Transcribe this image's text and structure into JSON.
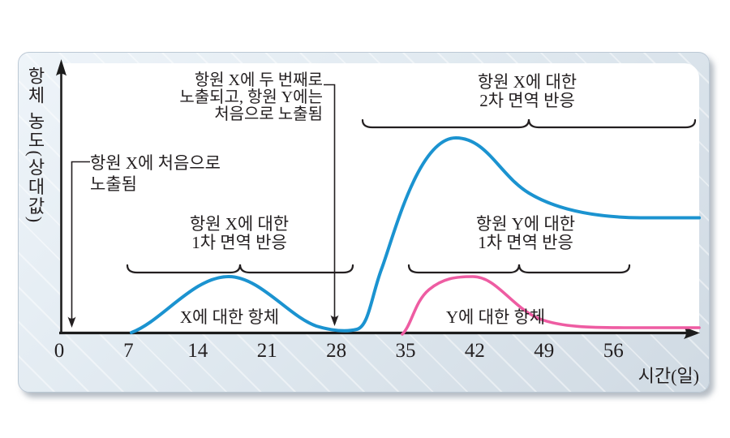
{
  "colors": {
    "curve_x_blue": "#1b93d0",
    "curve_y_pink": "#ee5ca2",
    "ink": "#231f20",
    "panel_light": "#eef4f9",
    "panel_dark": "#d0dae3"
  },
  "y_axis_label": "항체 농도(상대값)",
  "x_axis_title": "시간(일)",
  "annotations": {
    "first_exposure": {
      "line1": "항원 X에 처음으로",
      "line2": "노출됨"
    },
    "second_exposure": {
      "lines": [
        "항원 X에 두 번째로",
        "노출되고, 항원 Y에는",
        "처음으로 노출됨"
      ]
    },
    "secondary_response_x": {
      "line1": "항원 X에 대한",
      "line2": "2차 면역 반응"
    },
    "primary_response_x": {
      "line1": "항원 X에 대한",
      "line2": "1차 면역 반응"
    },
    "primary_response_y": {
      "line1": "항원 Y에 대한",
      "line2": "1차 면역 반응"
    },
    "antibody_x": "X에 대한 항체",
    "antibody_y": "Y에 대한 항체"
  },
  "chart_data": {
    "type": "line",
    "title": "",
    "xlabel": "시간(일)",
    "ylabel": "항체 농도(상대값)",
    "x_ticks": [
      0,
      7,
      14,
      21,
      28,
      35,
      42,
      49,
      56
    ],
    "x_range_days": [
      0,
      64
    ],
    "y_range_relative": [
      0,
      100
    ],
    "grid": false,
    "legend_position": "inline-labels",
    "series": [
      {
        "name": "X에 대한 항체",
        "color": "#1b93d0",
        "points_day_value": [
          [
            7,
            0
          ],
          [
            10,
            12
          ],
          [
            13,
            25
          ],
          [
            17,
            29
          ],
          [
            20,
            25
          ],
          [
            24,
            9
          ],
          [
            27,
            2
          ],
          [
            29,
            1
          ],
          [
            31,
            5
          ],
          [
            33,
            22
          ],
          [
            36,
            60
          ],
          [
            38,
            85
          ],
          [
            40,
            100
          ],
          [
            43,
            91
          ],
          [
            46,
            78
          ],
          [
            50,
            66
          ],
          [
            54,
            61
          ],
          [
            58,
            59.5
          ],
          [
            64,
            59
          ]
        ]
      },
      {
        "name": "Y에 대한 항체",
        "color": "#ee5ca2",
        "points_day_value": [
          [
            34.6,
            0
          ],
          [
            37,
            10
          ],
          [
            39,
            21
          ],
          [
            41.5,
            29
          ],
          [
            44,
            22
          ],
          [
            47,
            11
          ],
          [
            50,
            5
          ],
          [
            53,
            3.2
          ],
          [
            56,
            3
          ],
          [
            64,
            3
          ]
        ]
      }
    ],
    "events": [
      {
        "day": 0,
        "label": "항원 X에 처음으로 노출됨"
      },
      {
        "day": 28,
        "label": "항원 X에 두 번째로 노출되고, 항원 Y에는 처음으로 노출됨"
      }
    ],
    "brace_ranges_days": [
      {
        "label": "항원 X에 대한 1차 면역 반응",
        "from": 7,
        "to": 29.5
      },
      {
        "label": "항원 X에 대한 2차 면역 반응",
        "from": 30.5,
        "to": 64
      },
      {
        "label": "항원 Y에 대한 1차 면역 반응",
        "from": 35,
        "to": 57.5
      }
    ]
  }
}
